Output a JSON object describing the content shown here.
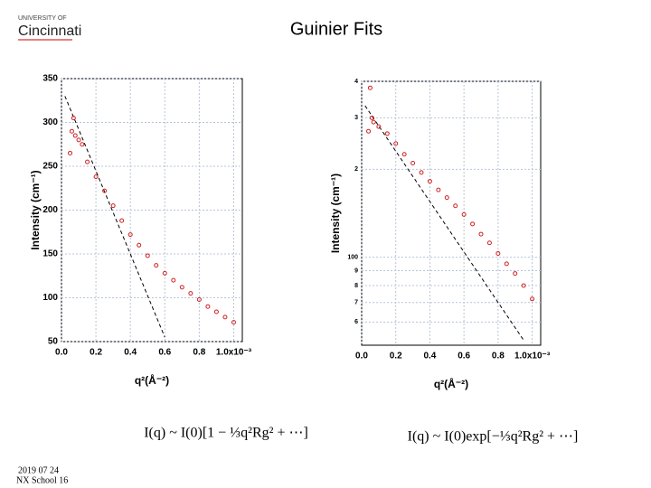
{
  "header": {
    "title": "Guinier Fits",
    "logo_small": "UNIVERSITY OF",
    "logo_name": "Cincinnati"
  },
  "footer": {
    "date": "2019 07 24",
    "event": "NX School 16"
  },
  "formulas": [
    "I(q) ~ I(0)[1 − ⅓q²Rg² + ⋯]",
    "I(q) ~ I(0)exp[−⅓q²Rg² + ⋯]"
  ],
  "chart_data": [
    {
      "type": "scatter",
      "color": "#cc2222",
      "log_y": false,
      "grid": true,
      "x_label": "q²(Å⁻²)",
      "y_label": "Intensity (cm⁻¹)",
      "xlim": [
        0,
        1.05
      ],
      "ylim": [
        50,
        350
      ],
      "xticks": [
        {
          "value": 0,
          "label": "0.0"
        },
        0.2,
        0.4,
        0.6,
        0.8,
        {
          "value": 1.0,
          "label": "1.0x10⁻³"
        }
      ],
      "yticks": [
        50,
        100,
        150,
        200,
        250,
        300,
        350
      ],
      "x": [
        0.05,
        0.06,
        0.07,
        0.08,
        0.1,
        0.12,
        0.15,
        0.2,
        0.25,
        0.3,
        0.35,
        0.4,
        0.45,
        0.5,
        0.55,
        0.6,
        0.65,
        0.7,
        0.75,
        0.8,
        0.85,
        0.9,
        0.95,
        1.0
      ],
      "values": [
        265,
        290,
        305,
        285,
        280,
        275,
        255,
        238,
        222,
        205,
        188,
        172,
        160,
        148,
        137,
        128,
        120,
        112,
        105,
        98,
        90,
        84,
        78,
        72
      ],
      "fit": {
        "x": [
          0.02,
          0.6
        ],
        "y": [
          330,
          55
        ]
      }
    },
    {
      "type": "scatter",
      "color": "#cc2222",
      "log_y": true,
      "grid": true,
      "x_label": "q²(Å⁻²)",
      "y_label": "Intensity (cm⁻¹)",
      "xlim": [
        0,
        1.05
      ],
      "ylim": [
        50,
        400
      ],
      "xticks": [
        {
          "value": 0,
          "label": "0.0"
        },
        0.2,
        0.4,
        0.6,
        0.8,
        {
          "value": 1.0,
          "label": "1.0x10⁻³"
        }
      ],
      "yticks": [
        {
          "value": 60,
          "label": "6"
        },
        {
          "value": 70,
          "label": "7"
        },
        {
          "value": 80,
          "label": "8"
        },
        {
          "value": 90,
          "label": "9"
        },
        100,
        {
          "value": 200,
          "label": "2"
        },
        {
          "value": 300,
          "label": "3"
        },
        {
          "value": 400,
          "label": "4"
        }
      ],
      "x": [
        0.04,
        0.05,
        0.06,
        0.07,
        0.1,
        0.15,
        0.2,
        0.25,
        0.3,
        0.35,
        0.4,
        0.45,
        0.5,
        0.55,
        0.6,
        0.65,
        0.7,
        0.75,
        0.8,
        0.85,
        0.9,
        0.95,
        1.0
      ],
      "values": [
        270,
        380,
        300,
        290,
        280,
        265,
        245,
        225,
        210,
        195,
        182,
        170,
        160,
        150,
        140,
        130,
        120,
        112,
        103,
        95,
        88,
        80,
        72
      ],
      "fit": {
        "x": [
          0.02,
          0.95
        ],
        "y": [
          330,
          52
        ]
      }
    }
  ]
}
